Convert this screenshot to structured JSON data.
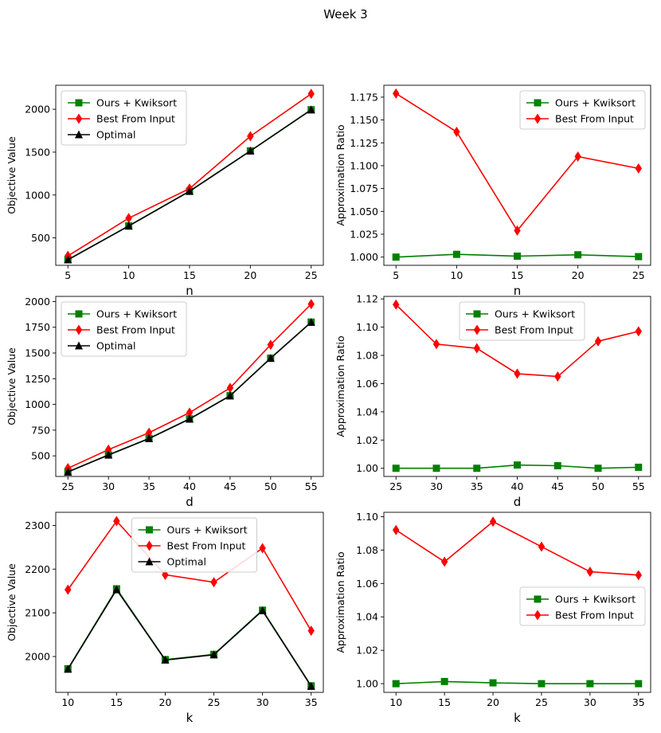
{
  "figure": {
    "title": "Week 3"
  },
  "chart_data": [
    {
      "type": "line",
      "title": "",
      "xlabel": "n",
      "ylabel": "Objective Value",
      "x": [
        5,
        10,
        15,
        20,
        25
      ],
      "xticks": [
        "5",
        "10",
        "15",
        "20",
        "25"
      ],
      "yticks": [
        500,
        1000,
        1500,
        2000
      ],
      "ytick_labels": [
        "500",
        "1000",
        "1500",
        "2000"
      ],
      "ylim": [
        180,
        2280
      ],
      "legend_position": "upper-left",
      "series": [
        {
          "name": "Ours + Kwiksort",
          "color": "#008000",
          "marker": "square",
          "values": [
            245,
            640,
            1045,
            1515,
            1995
          ]
        },
        {
          "name": "Best From Input",
          "color": "#ff0000",
          "marker": "diamond",
          "values": [
            290,
            730,
            1075,
            1685,
            2180
          ]
        },
        {
          "name": "Optimal",
          "color": "#000000",
          "marker": "triangle",
          "values": [
            245,
            638,
            1043,
            1513,
            1993
          ]
        }
      ]
    },
    {
      "type": "line",
      "title": "",
      "xlabel": "n",
      "ylabel": "Approximation Ratio",
      "x": [
        5,
        10,
        15,
        20,
        25
      ],
      "xticks": [
        "5",
        "10",
        "15",
        "20",
        "25"
      ],
      "yticks": [
        1.0,
        1.025,
        1.05,
        1.075,
        1.1,
        1.125,
        1.15,
        1.175
      ],
      "ytick_labels": [
        "1.000",
        "1.025",
        "1.050",
        "1.075",
        "1.100",
        "1.125",
        "1.150",
        "1.175"
      ],
      "ylim": [
        0.991,
        1.188
      ],
      "legend_position": "upper-right",
      "series": [
        {
          "name": "Ours + Kwiksort",
          "color": "#008000",
          "marker": "square",
          "values": [
            1.0,
            1.003,
            1.001,
            1.0025,
            1.0005
          ]
        },
        {
          "name": "Best From Input",
          "color": "#ff0000",
          "marker": "diamond",
          "values": [
            1.179,
            1.137,
            1.029,
            1.11,
            1.097
          ]
        }
      ]
    },
    {
      "type": "line",
      "title": "",
      "xlabel": "d",
      "ylabel": "Objective Value",
      "x": [
        25,
        30,
        35,
        40,
        45,
        50,
        55
      ],
      "xticks": [
        "25",
        "30",
        "35",
        "40",
        "45",
        "50",
        "55"
      ],
      "yticks": [
        500,
        750,
        1000,
        1250,
        1500,
        1750,
        2000
      ],
      "ytick_labels": [
        "500",
        "750",
        "1000",
        "1250",
        "1500",
        "1750",
        "2000"
      ],
      "ylim": [
        300,
        2050
      ],
      "legend_position": "upper-left",
      "series": [
        {
          "name": "Ours + Kwiksort",
          "color": "#008000",
          "marker": "square",
          "values": [
            345,
            510,
            670,
            860,
            1085,
            1450,
            1800
          ]
        },
        {
          "name": "Best From Input",
          "color": "#ff0000",
          "marker": "diamond",
          "values": [
            380,
            560,
            725,
            920,
            1160,
            1580,
            1975
          ]
        },
        {
          "name": "Optimal",
          "color": "#000000",
          "marker": "triangle",
          "values": [
            343,
            508,
            668,
            858,
            1083,
            1448,
            1798
          ]
        }
      ]
    },
    {
      "type": "line",
      "title": "",
      "xlabel": "d",
      "ylabel": "Approximation Ratio",
      "x": [
        25,
        30,
        35,
        40,
        45,
        50,
        55
      ],
      "xticks": [
        "25",
        "30",
        "35",
        "40",
        "45",
        "50",
        "55"
      ],
      "yticks": [
        1.0,
        1.02,
        1.04,
        1.06,
        1.08,
        1.1,
        1.12
      ],
      "ytick_labels": [
        "1.00",
        "1.02",
        "1.04",
        "1.06",
        "1.08",
        "1.10",
        "1.12"
      ],
      "ylim": [
        0.9942,
        1.1218
      ],
      "legend_position": "upper-center",
      "series": [
        {
          "name": "Ours + Kwiksort",
          "color": "#008000",
          "marker": "square",
          "values": [
            1.0,
            1.0,
            1.0,
            1.0023,
            1.0018,
            1.0,
            1.0007
          ]
        },
        {
          "name": "Best From Input",
          "color": "#ff0000",
          "marker": "diamond",
          "values": [
            1.116,
            1.088,
            1.085,
            1.067,
            1.065,
            1.09,
            1.097
          ]
        }
      ]
    },
    {
      "type": "line",
      "title": "",
      "xlabel": "k",
      "ylabel": "Objective Value",
      "x": [
        10,
        15,
        20,
        25,
        30,
        35
      ],
      "xticks": [
        "10",
        "15",
        "20",
        "25",
        "30",
        "35"
      ],
      "yticks": [
        2000,
        2100,
        2200,
        2300
      ],
      "ytick_labels": [
        "2000",
        "2100",
        "2200",
        "2300"
      ],
      "ylim": [
        1918,
        2330
      ],
      "legend_position": "upper-center",
      "series": [
        {
          "name": "Ours + Kwiksort",
          "color": "#008000",
          "marker": "square",
          "values": [
            1972,
            2155,
            1993,
            2005,
            2106,
            1933
          ]
        },
        {
          "name": "Best From Input",
          "color": "#ff0000",
          "marker": "diamond",
          "values": [
            2153,
            2310,
            2187,
            2170,
            2248,
            2059
          ]
        },
        {
          "name": "Optimal",
          "color": "#000000",
          "marker": "triangle",
          "values": [
            1971,
            2153,
            1992,
            2004,
            2105,
            1932
          ]
        }
      ]
    },
    {
      "type": "line",
      "title": "",
      "xlabel": "k",
      "ylabel": "Approximation Ratio",
      "x": [
        10,
        15,
        20,
        25,
        30,
        35
      ],
      "xticks": [
        "10",
        "15",
        "20",
        "25",
        "30",
        "35"
      ],
      "yticks": [
        1.0,
        1.02,
        1.04,
        1.06,
        1.08,
        1.1
      ],
      "ytick_labels": [
        "1.00",
        "1.02",
        "1.04",
        "1.06",
        "1.08",
        "1.10"
      ],
      "ylim": [
        0.9948,
        1.1026
      ],
      "legend_position": "center-right",
      "series": [
        {
          "name": "Ours + Kwiksort",
          "color": "#008000",
          "marker": "square",
          "values": [
            1.0,
            1.0013,
            1.0005,
            1.0,
            1.0,
            1.0
          ]
        },
        {
          "name": "Best From Input",
          "color": "#ff0000",
          "marker": "diamond",
          "values": [
            1.092,
            1.073,
            1.097,
            1.082,
            1.067,
            1.065
          ]
        }
      ]
    }
  ]
}
